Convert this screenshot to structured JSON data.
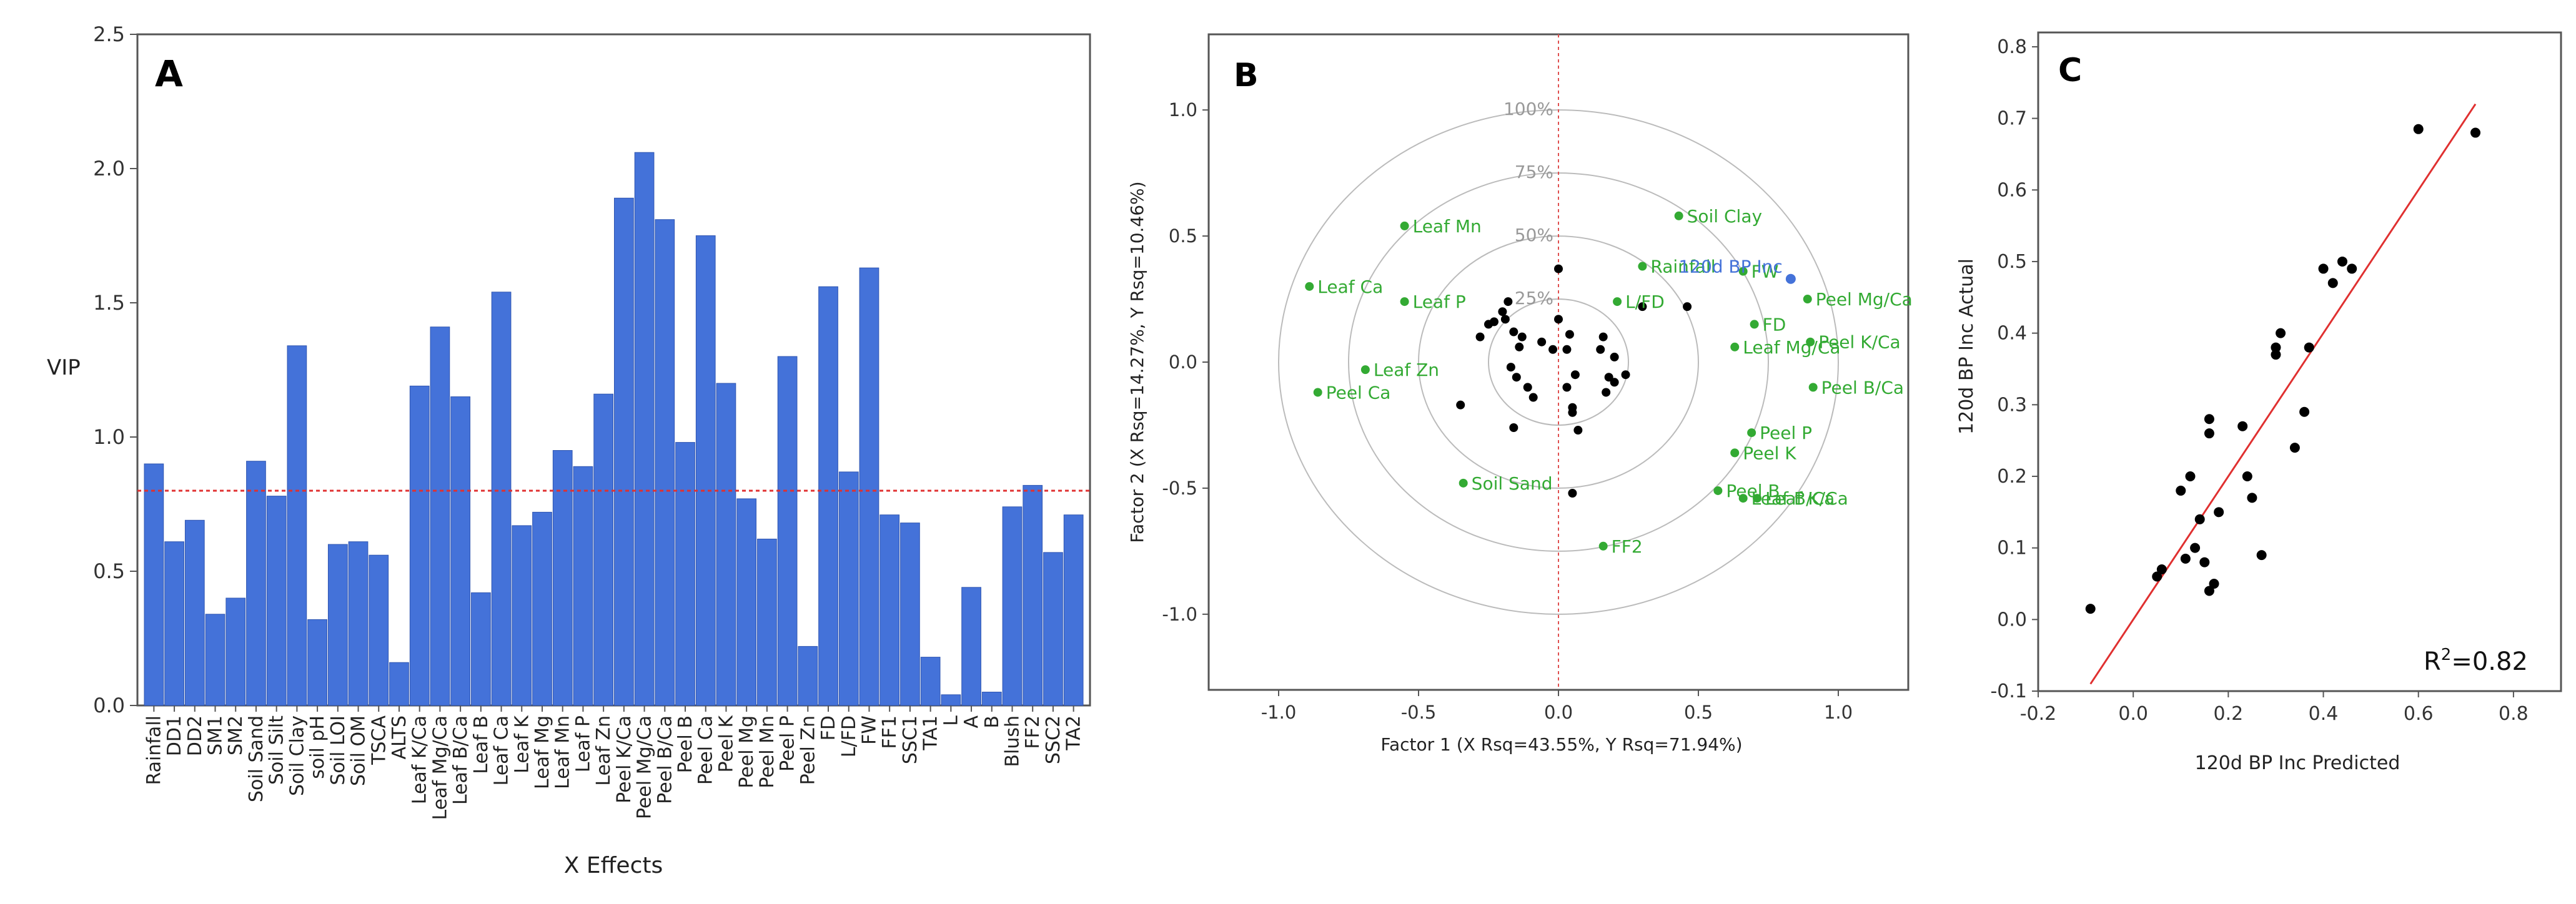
{
  "chart_data": [
    {
      "panel_label": "A",
      "type": "bar",
      "xlabel": "X Effects",
      "ylabel": "VIP",
      "ylim": [
        0,
        2.5
      ],
      "yticks": [
        "0.0",
        "0.5",
        "1.0",
        "1.5",
        "2.0",
        "2.5"
      ],
      "threshold": 0.8,
      "bar_color": "#4472d9",
      "threshold_color": "#e03030",
      "categories": [
        "Rainfall",
        "DD1",
        "DD2",
        "SM1",
        "SM2",
        "Soil Sand",
        "Soil Silt",
        "Soil Clay",
        "soil pH",
        "Soil LOI",
        "Soil OM",
        "TSCA",
        "ALTS",
        "Leaf K/Ca",
        "Leaf Mg/Ca",
        "Leaf B/Ca",
        "Leaf B",
        "Leaf Ca",
        "Leaf K",
        "Leaf Mg",
        "Leaf Mn",
        "Leaf P",
        "Leaf Zn",
        "Peel K/Ca",
        "Peel Mg/Ca",
        "Peel B/Ca",
        "Peel B",
        "Peel Ca",
        "Peel K",
        "Peel Mg",
        "Peel Mn",
        "Peel P",
        "Peel Zn",
        "FD",
        "L/FD",
        "FW",
        "FF1",
        "SSC1",
        "TA1",
        "L",
        "A",
        "B",
        "Blush",
        "FF2",
        "SSC2",
        "TA2"
      ],
      "values": [
        0.9,
        0.61,
        0.69,
        0.34,
        0.4,
        0.91,
        0.78,
        1.34,
        0.32,
        0.6,
        0.61,
        0.56,
        0.16,
        1.19,
        1.41,
        1.15,
        0.42,
        1.54,
        0.67,
        0.72,
        0.95,
        0.89,
        1.16,
        1.89,
        2.06,
        1.81,
        0.98,
        1.75,
        1.2,
        0.77,
        0.62,
        1.3,
        0.22,
        1.56,
        0.87,
        1.63,
        0.71,
        0.68,
        0.18,
        0.04,
        0.44,
        0.05,
        0.74,
        0.82,
        0.57,
        0.71
      ]
    },
    {
      "panel_label": "B",
      "type": "scatter",
      "xlabel": "Factor 1 (X Rsq=43.55%, Y Rsq=71.94%)",
      "ylabel": "Factor 2 (X Rsq=14.27%, Y Rsq=10.46%)",
      "xlim": [
        -1.25,
        1.25
      ],
      "ylim": [
        -1.3,
        1.3
      ],
      "xticks": [
        "-1.0",
        "-0.5",
        "0.0",
        "0.5",
        "1.0"
      ],
      "yticks": [
        "-1.0",
        "-0.5",
        "0.0",
        "0.5",
        "1.0"
      ],
      "circle_labels": [
        "25%",
        "50%",
        "75%",
        "100%"
      ],
      "loading_color": "#33aa33",
      "response_color": "#4472d9",
      "score_color": "#000000",
      "loadings": [
        {
          "label": "Leaf Mn",
          "x": -0.55,
          "y": 0.54
        },
        {
          "label": "Leaf Ca",
          "x": -0.89,
          "y": 0.3
        },
        {
          "label": "Leaf P",
          "x": -0.55,
          "y": 0.24
        },
        {
          "label": "Leaf Zn",
          "x": -0.69,
          "y": -0.03
        },
        {
          "label": "Peel Ca",
          "x": -0.86,
          "y": -0.12
        },
        {
          "label": "Soil Sand",
          "x": -0.34,
          "y": -0.48
        },
        {
          "label": "Soil Clay",
          "x": 0.43,
          "y": 0.58
        },
        {
          "label": "Rainfall",
          "x": 0.3,
          "y": 0.38
        },
        {
          "label": "L/FD",
          "x": 0.21,
          "y": 0.24
        },
        {
          "label": "Leaf Mg/Ca",
          "x": 0.63,
          "y": 0.06
        },
        {
          "label": "FW",
          "x": 0.66,
          "y": 0.36
        },
        {
          "label": "FD",
          "x": 0.7,
          "y": 0.15
        },
        {
          "label": "Peel Mg/Ca",
          "x": 0.89,
          "y": 0.25
        },
        {
          "label": "Peel K/Ca",
          "x": 0.9,
          "y": 0.08
        },
        {
          "label": "Peel B/Ca",
          "x": 0.91,
          "y": -0.1
        },
        {
          "label": "Peel P",
          "x": 0.69,
          "y": -0.28
        },
        {
          "label": "Peel K",
          "x": 0.63,
          "y": -0.36
        },
        {
          "label": "Peel B",
          "x": 0.57,
          "y": -0.51
        },
        {
          "label": "Leaf B/Ca",
          "x": 0.66,
          "y": -0.54
        },
        {
          "label": "Leaf K/Ca",
          "x": 0.71,
          "y": -0.54
        },
        {
          "label": "FF2",
          "x": 0.16,
          "y": -0.73
        }
      ],
      "response": {
        "label": "120d BP Inc",
        "x": 0.83,
        "y": 0.33
      },
      "scores": [
        [
          -0.35,
          -0.17
        ],
        [
          -0.28,
          0.1
        ],
        [
          -0.25,
          0.15
        ],
        [
          -0.23,
          0.16
        ],
        [
          -0.2,
          0.2
        ],
        [
          -0.18,
          0.24
        ],
        [
          -0.19,
          0.17
        ],
        [
          -0.16,
          0.12
        ],
        [
          -0.13,
          0.1
        ],
        [
          -0.14,
          0.06
        ],
        [
          -0.17,
          -0.02
        ],
        [
          -0.15,
          -0.06
        ],
        [
          -0.11,
          -0.1
        ],
        [
          -0.09,
          -0.14
        ],
        [
          -0.16,
          -0.26
        ],
        [
          -0.06,
          0.08
        ],
        [
          0.0,
          0.37
        ],
        [
          0.0,
          0.17
        ],
        [
          -0.02,
          0.05
        ],
        [
          0.04,
          0.11
        ],
        [
          0.03,
          0.05
        ],
        [
          0.06,
          -0.05
        ],
        [
          0.03,
          -0.1
        ],
        [
          0.05,
          -0.18
        ],
        [
          0.05,
          -0.2
        ],
        [
          0.07,
          -0.27
        ],
        [
          0.05,
          -0.52
        ],
        [
          0.16,
          0.1
        ],
        [
          0.15,
          0.05
        ],
        [
          0.2,
          0.02
        ],
        [
          0.18,
          -0.06
        ],
        [
          0.17,
          -0.12
        ],
        [
          0.2,
          -0.08
        ],
        [
          0.24,
          -0.05
        ],
        [
          0.3,
          0.22
        ],
        [
          0.46,
          0.22
        ]
      ]
    },
    {
      "panel_label": "C",
      "type": "scatter",
      "xlabel": "120d BP Inc Predicted",
      "ylabel": "120d BP Inc Actual",
      "xlim": [
        -0.2,
        0.9
      ],
      "ylim": [
        -0.1,
        0.82
      ],
      "xticks": [
        "-0.2",
        "0.0",
        "0.2",
        "0.4",
        "0.6",
        "0.8"
      ],
      "yticks": [
        "-0.1",
        "0.0",
        "0.1",
        "0.2",
        "0.3",
        "0.4",
        "0.5",
        "0.6",
        "0.7",
        "0.8"
      ],
      "annotation_base": "R",
      "annotation_sup": "2",
      "annotation_value": "=0.82",
      "line_color": "#e03030",
      "fit_line": [
        [
          -0.09,
          -0.09
        ],
        [
          0.72,
          0.72
        ]
      ],
      "points": [
        [
          -0.09,
          0.015
        ],
        [
          0.05,
          0.06
        ],
        [
          0.06,
          0.07
        ],
        [
          0.1,
          0.18
        ],
        [
          0.12,
          0.2
        ],
        [
          0.13,
          0.1
        ],
        [
          0.14,
          0.14
        ],
        [
          0.15,
          0.08
        ],
        [
          0.16,
          0.04
        ],
        [
          0.17,
          0.05
        ],
        [
          0.16,
          0.28
        ],
        [
          0.16,
          0.26
        ],
        [
          0.18,
          0.15
        ],
        [
          0.23,
          0.27
        ],
        [
          0.24,
          0.2
        ],
        [
          0.25,
          0.17
        ],
        [
          0.27,
          0.09
        ],
        [
          0.3,
          0.37
        ],
        [
          0.3,
          0.38
        ],
        [
          0.31,
          0.4
        ],
        [
          0.34,
          0.24
        ],
        [
          0.36,
          0.29
        ],
        [
          0.37,
          0.38
        ],
        [
          0.4,
          0.49
        ],
        [
          0.42,
          0.47
        ],
        [
          0.44,
          0.5
        ],
        [
          0.46,
          0.49
        ],
        [
          0.6,
          0.685
        ],
        [
          0.72,
          0.68
        ],
        [
          0.11,
          0.085
        ]
      ]
    }
  ]
}
